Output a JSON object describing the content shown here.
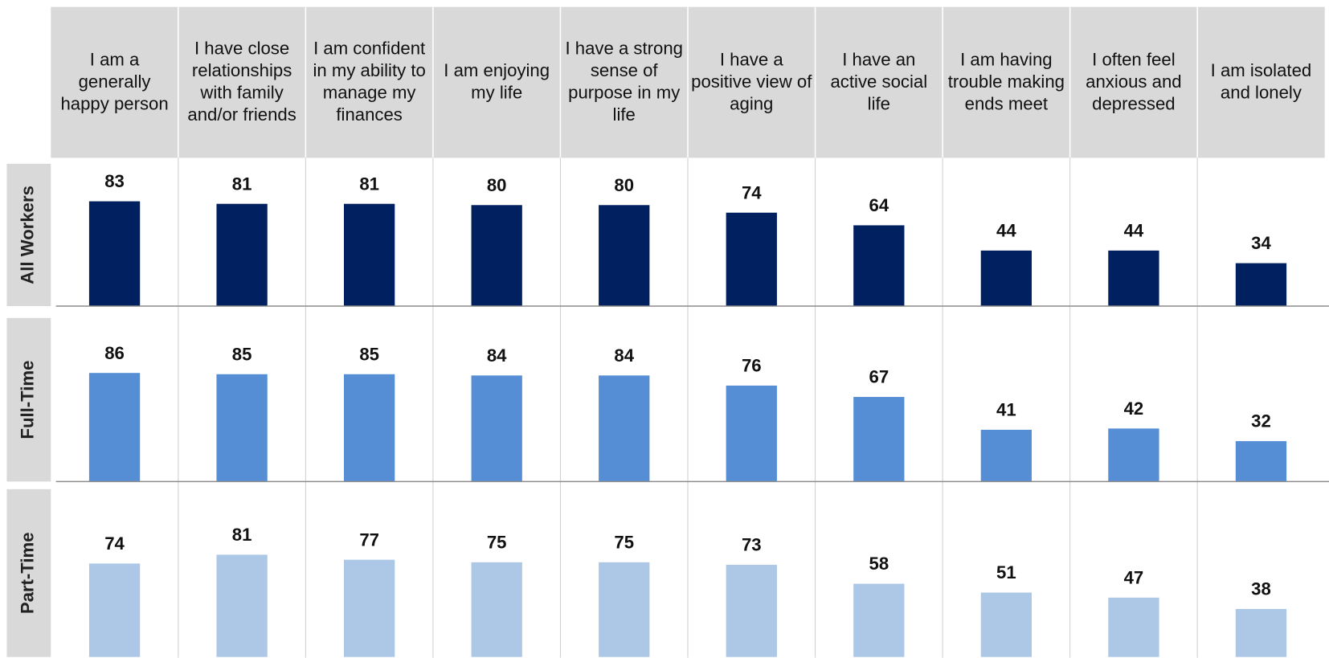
{
  "chart_data": {
    "type": "bar",
    "categories": [
      "I am a generally happy person",
      "I have close relationships with family and/or friends",
      "I am confident in my ability to manage my finances",
      "I am enjoying my life",
      "I have a strong sense of purpose in my life",
      "I have a positive view of aging",
      "I have an active social life",
      "I am having trouble making ends meet",
      "I often feel anxious and depressed",
      "I am isolated and lonely"
    ],
    "series": [
      {
        "name": "All Workers",
        "color": "#002060",
        "values": [
          83,
          81,
          81,
          80,
          80,
          74,
          64,
          44,
          44,
          34
        ]
      },
      {
        "name": "Full-Time",
        "color": "#558ed5",
        "values": [
          86,
          85,
          85,
          84,
          84,
          76,
          67,
          41,
          42,
          32
        ]
      },
      {
        "name": "Part-Time",
        "color": "#adc8e6",
        "values": [
          74,
          81,
          77,
          75,
          75,
          73,
          58,
          51,
          47,
          38
        ]
      }
    ]
  }
}
